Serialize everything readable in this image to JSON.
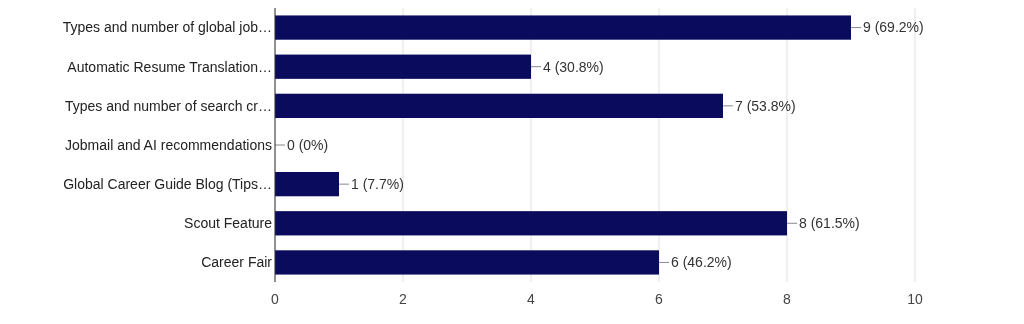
{
  "chart_data": {
    "type": "bar",
    "orientation": "horizontal",
    "categories": [
      "Types and number of global job…",
      "Automatic Resume Translation…",
      "Types and number of search cr…",
      "Jobmail and AI recommendations",
      "Global Career Guide Blog (Tips…",
      "Scout Feature",
      "Career Fair"
    ],
    "values": [
      9,
      4,
      7,
      0,
      1,
      8,
      6
    ],
    "value_labels": [
      "9 (69.2%)",
      "4 (30.8%)",
      "7 (53.8%)",
      "0 (0%)",
      "1 (7.7%)",
      "8 (61.5%)",
      "6 (46.2%)"
    ],
    "color": "#0b0b5e",
    "xlim": [
      0,
      10
    ],
    "xticks": [
      0,
      2,
      4,
      6,
      8,
      10
    ],
    "grid": "x"
  }
}
